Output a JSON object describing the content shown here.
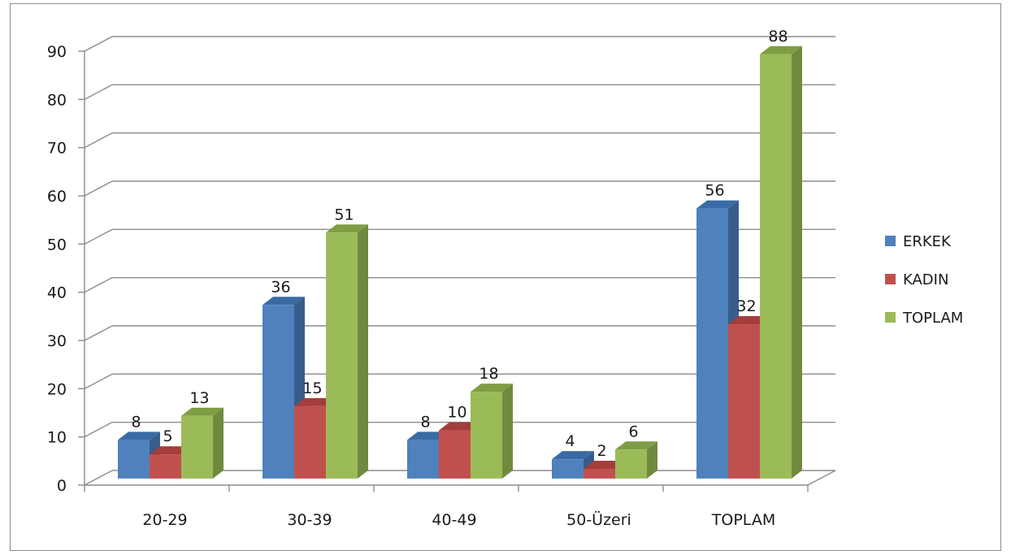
{
  "chart_data": {
    "type": "bar",
    "categories": [
      "20-29",
      "30-39",
      "40-49",
      "50-Üzeri",
      "TOPLAM"
    ],
    "series": [
      {
        "name": "ERKEK",
        "values": [
          8,
          36,
          8,
          4,
          56
        ],
        "color": "#4f81bd",
        "side_color": "#385d8a",
        "top_color": "#3a6aa5"
      },
      {
        "name": "KADIN",
        "values": [
          5,
          15,
          10,
          2,
          32
        ],
        "color": "#c0504d",
        "side_color": "#8c3836",
        "top_color": "#a33e3b"
      },
      {
        "name": "TOPLAM",
        "values": [
          13,
          51,
          18,
          6,
          88
        ],
        "color": "#9bbb59",
        "side_color": "#71893f",
        "top_color": "#7f9d43"
      }
    ],
    "y_ticks": [
      "0",
      "10",
      "20",
      "30",
      "40",
      "50",
      "60",
      "70",
      "80",
      "90"
    ],
    "ylim": [
      0,
      90
    ],
    "grid": true,
    "legend_position": "right",
    "style": "3d-clustered-column",
    "title": "",
    "xlabel": "",
    "ylabel": ""
  }
}
